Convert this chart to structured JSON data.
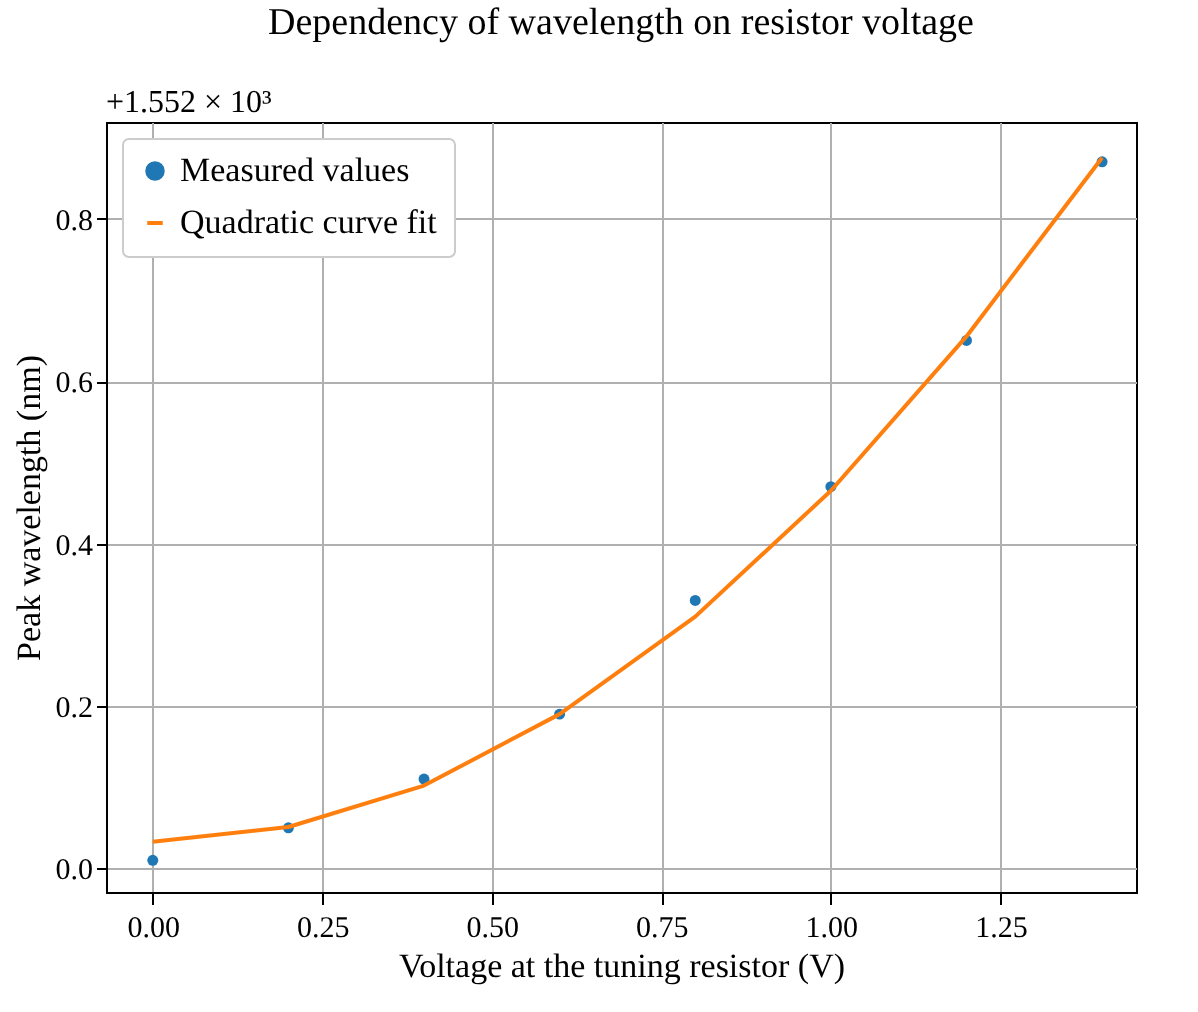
{
  "chart_data": {
    "type": "scatter",
    "title": "Dependency of wavelength on resistor voltage",
    "xlabel": "Voltage at the tuning resistor (V)",
    "ylabel": "Peak wavelength (nm)",
    "annotations": [
      "+1.552 × 10³"
    ],
    "x": [
      0.0,
      0.2,
      0.4,
      0.6,
      0.8,
      1.0,
      1.2,
      1.4
    ],
    "series": [
      {
        "name": "Measured values",
        "color": "#1f77b4",
        "marker": "circle",
        "values": [
          0.01,
          0.05,
          0.11,
          0.19,
          0.33,
          0.47,
          0.65,
          0.87
        ]
      },
      {
        "name": "Quadratic curve fit",
        "type": "line",
        "color": "#ff7f0e",
        "marker": "none",
        "line_style": "solid",
        "values": [
          0.033,
          0.051,
          0.102,
          0.19,
          0.31,
          0.465,
          0.655,
          0.875
        ]
      }
    ],
    "xlim": [
      -0.069,
      1.45
    ],
    "ylim": [
      -0.029,
      0.919
    ],
    "xticks": [
      {
        "value": 0,
        "label": "0.00"
      },
      {
        "value": 0.25,
        "label": "0.25"
      },
      {
        "value": 0.5,
        "label": "0.50"
      },
      {
        "value": 0.75,
        "label": "0.75"
      },
      {
        "value": 1,
        "label": "1.00"
      },
      {
        "value": 1.25,
        "label": "1.25"
      }
    ],
    "yticks": [
      {
        "value": 0,
        "label": "0.0"
      },
      {
        "value": 0.2,
        "label": "0.2"
      },
      {
        "value": 0.4,
        "label": "0.4"
      },
      {
        "value": 0.6,
        "label": "0.6"
      },
      {
        "value": 0.8,
        "label": "0.8"
      }
    ],
    "grid": true,
    "legend": "top left"
  }
}
